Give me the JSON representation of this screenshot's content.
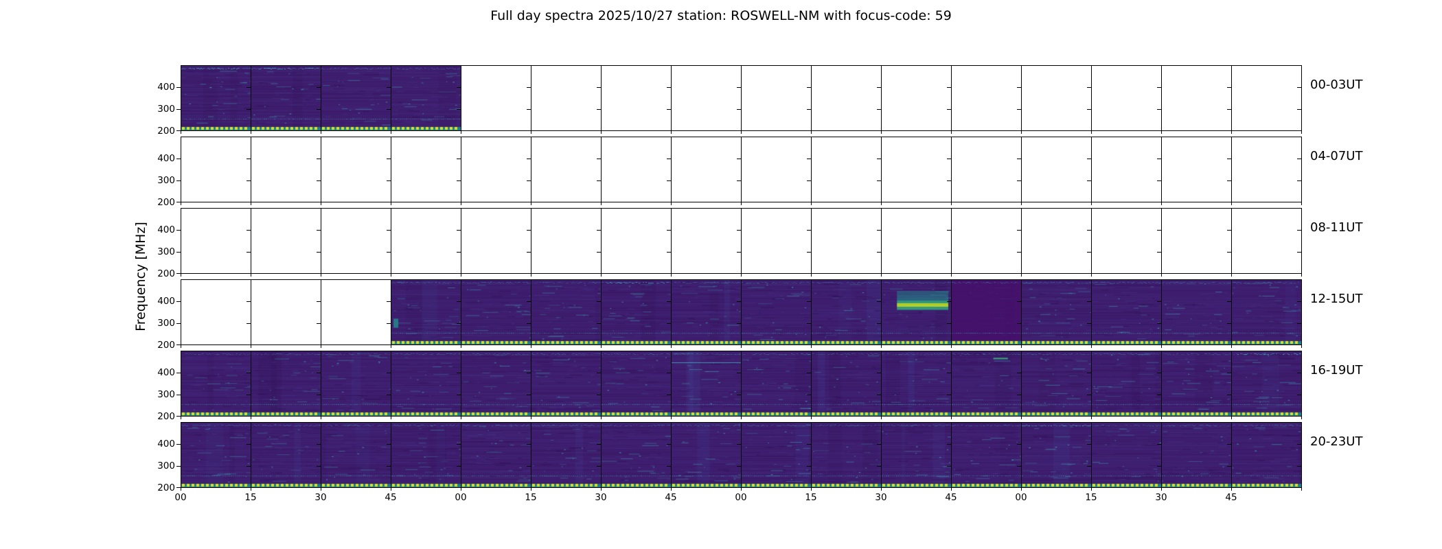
{
  "title": "Full day spectra 2025/10/27 station: ROSWELL-NM with focus-code: 59",
  "y_axis": {
    "label": "Frequency [MHz]",
    "tick_labels": [
      "400",
      "300",
      "200"
    ],
    "range_mhz": [
      200,
      500
    ]
  },
  "x_axis": {
    "tick_labels_cycle": [
      "00",
      "15",
      "30",
      "45"
    ],
    "hours_per_row": 4,
    "segment_minutes": 15
  },
  "chart_data": {
    "type": "heatmap",
    "subtype": "radio-spectrogram-grid",
    "station": "ROSWELL-NM",
    "date": "2025/10/27",
    "focus_code": "59",
    "description": "Six 4-hour rows of dynamic radio spectra (200-500 MHz), each row split into sixteen 15-minute segments; viridis dark-purple spectrogram where data exists, white where data is missing; yellow flag dots along the bottom of every recorded segment",
    "rows": [
      {
        "label": "00-03UT",
        "segments_with_data": [
          0,
          1,
          2,
          3
        ]
      },
      {
        "label": "04-07UT",
        "segments_with_data": []
      },
      {
        "label": "08-11UT",
        "segments_with_data": []
      },
      {
        "label": "12-15UT",
        "segments_with_data": [
          3,
          4,
          5,
          6,
          7,
          8,
          9,
          10,
          11,
          12,
          13,
          14,
          15
        ]
      },
      {
        "label": "16-19UT",
        "segments_with_data": [
          0,
          1,
          2,
          3,
          4,
          5,
          6,
          7,
          8,
          9,
          10,
          11,
          12,
          13,
          14,
          15
        ]
      },
      {
        "label": "20-23UT",
        "segments_with_data": [
          0,
          1,
          2,
          3,
          4,
          5,
          6,
          7,
          8,
          9,
          10,
          11,
          12,
          13,
          14,
          15
        ]
      }
    ],
    "features": [
      {
        "row": 3,
        "segment": 10,
        "type": "burst",
        "time_ut": "~14:33-14:44",
        "freq_mhz": [
          360,
          450
        ],
        "peak_freq_mhz": 385,
        "x0": 0.22,
        "x1": 0.96,
        "y0": 0.167,
        "y1": 0.467,
        "peak_y": 0.383
      },
      {
        "row": 3,
        "segment": 11,
        "type": "dark",
        "time_ut": "14:45-15:00"
      },
      {
        "row": 3,
        "segment": 3,
        "type": "blob",
        "freq_mhz": 300,
        "x": 0.03,
        "y": 0.6,
        "w": 0.07,
        "h": 0.14
      },
      {
        "row": 4,
        "segment": 11,
        "type": "dash",
        "freq_mhz": 467,
        "x": 0.6,
        "y": 0.1,
        "len": 0.21
      },
      {
        "row": 4,
        "segment": 7,
        "type": "line",
        "freq_mhz": 450,
        "y": 0.17
      }
    ],
    "persistent_bands": {
      "top_band_mhz": 487,
      "dotted_line_mhz": 255,
      "bottom_flags_mhz": 205
    },
    "strong_top_segments": [
      [
        0,
        0
      ],
      [
        0,
        1
      ],
      [
        3,
        6
      ],
      [
        4,
        15
      ],
      [
        5,
        12
      ]
    ]
  },
  "colors": {
    "background": "#ffffff",
    "text": "#000000",
    "base": "#3e1d6e",
    "row_light": "#4a3a8c",
    "row_dark": "#2e0f52",
    "band_blue": "#44509e",
    "cyan": "#3fb7c0",
    "teal": "#21918c",
    "green": "#35b779",
    "peak_yellow": "#c8e020",
    "dot_yellow": "#dde318",
    "dot_teal": "#1f7e8c",
    "dark_cell": "#45106b"
  }
}
